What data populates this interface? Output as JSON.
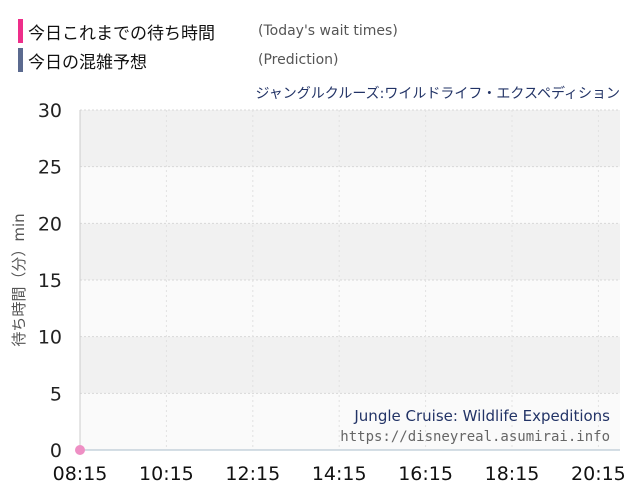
{
  "legend": {
    "wait": {
      "label": "今日これまでの待ち時間",
      "sub": "(Today's wait times)",
      "color": "#ee2e8a"
    },
    "prediction": {
      "label": "今日の混雑予想",
      "sub": "(Prediction)",
      "color": "#5b6a8f"
    }
  },
  "chart_data": {
    "type": "area",
    "subtitle": "ジャングルクルーズ:ワイルドライフ・エクスペディション",
    "ylabel": "待ち時間（分）min",
    "xlabel": "",
    "ylim": [
      0,
      30
    ],
    "yticks": [
      0,
      5,
      10,
      15,
      20,
      25,
      30
    ],
    "xlim": [
      "08:15",
      "20:45"
    ],
    "xticks": [
      "08:15",
      "10:15",
      "12:15",
      "14:15",
      "16:15",
      "18:15",
      "20:15"
    ],
    "grid": true,
    "colors": {
      "prediction_fill": "#d8e3ec",
      "prediction_line": "#a9bccb",
      "wait_point": "#ee8fc4"
    },
    "series": [
      {
        "name": "今日の混雑予想",
        "x": [
          "08:15",
          "08:30",
          "08:45",
          "09:00",
          "09:15",
          "09:30",
          "09:45",
          "10:00",
          "10:15",
          "10:30",
          "10:45",
          "11:00",
          "11:15",
          "11:30",
          "11:45",
          "12:00",
          "12:15",
          "12:30",
          "12:45",
          "13:00",
          "13:15",
          "13:30",
          "13:45",
          "14:00",
          "14:15",
          "14:30",
          "14:45",
          "15:00",
          "15:15",
          "15:30",
          "15:45",
          "16:00",
          "16:15",
          "16:30",
          "16:45",
          "17:00",
          "17:15",
          "17:30",
          "17:45",
          "18:00",
          "18:15",
          "18:30",
          "18:45",
          "19:00",
          "19:15",
          "19:30",
          "19:45",
          "20:00",
          "20:15",
          "20:30",
          "20:45"
        ],
        "values": [
          0,
          0,
          0,
          0,
          0,
          0,
          0,
          0,
          0,
          0,
          0,
          0,
          0,
          0,
          0,
          0,
          0,
          0,
          0,
          0,
          0,
          0,
          0,
          0,
          0,
          0,
          0,
          0,
          0,
          0,
          0,
          0,
          0,
          0,
          0,
          0,
          0,
          0,
          0,
          0,
          0,
          0,
          0,
          0,
          0,
          0,
          0,
          0,
          0,
          0,
          0
        ]
      },
      {
        "name": "今日これまでの待ち時間",
        "x": [
          "08:15"
        ],
        "values": [
          0
        ]
      }
    ]
  },
  "watermark": {
    "line1": "Jungle Cruise: Wildlife Expeditions",
    "line2": "https://disneyreal.asumirai.info"
  }
}
